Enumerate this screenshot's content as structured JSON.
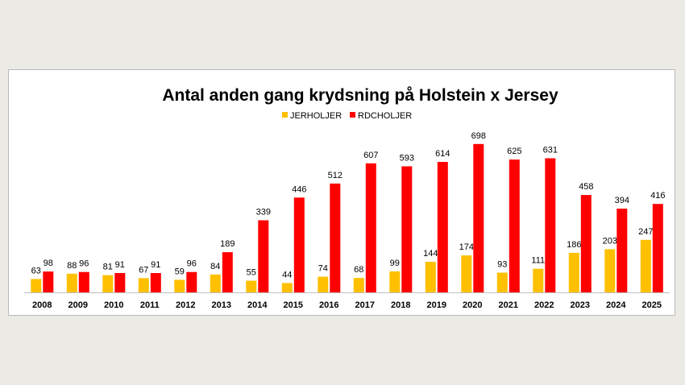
{
  "chart_data": {
    "type": "bar",
    "title": "Antal anden gang krydsning på Holstein x Jersey",
    "categories": [
      "2008",
      "2009",
      "2010",
      "2011",
      "2012",
      "2013",
      "2014",
      "2015",
      "2016",
      "2017",
      "2018",
      "2019",
      "2020",
      "2021",
      "2022",
      "2023",
      "2024",
      "2025"
    ],
    "series": [
      {
        "name": "JERHOLJER",
        "color": "#ffc000",
        "values": [
          63,
          88,
          81,
          67,
          59,
          84,
          55,
          44,
          74,
          68,
          99,
          144,
          174,
          93,
          111,
          186,
          203,
          247
        ]
      },
      {
        "name": "RDCHOLJER",
        "color": "#ff0000",
        "values": [
          98,
          96,
          91,
          91,
          96,
          189,
          339,
          446,
          512,
          607,
          593,
          614,
          698,
          625,
          631,
          458,
          394,
          416
        ]
      }
    ],
    "ylim": [
      0,
      720
    ],
    "legend_position": "top-center",
    "grid": false,
    "data_labels": true
  }
}
